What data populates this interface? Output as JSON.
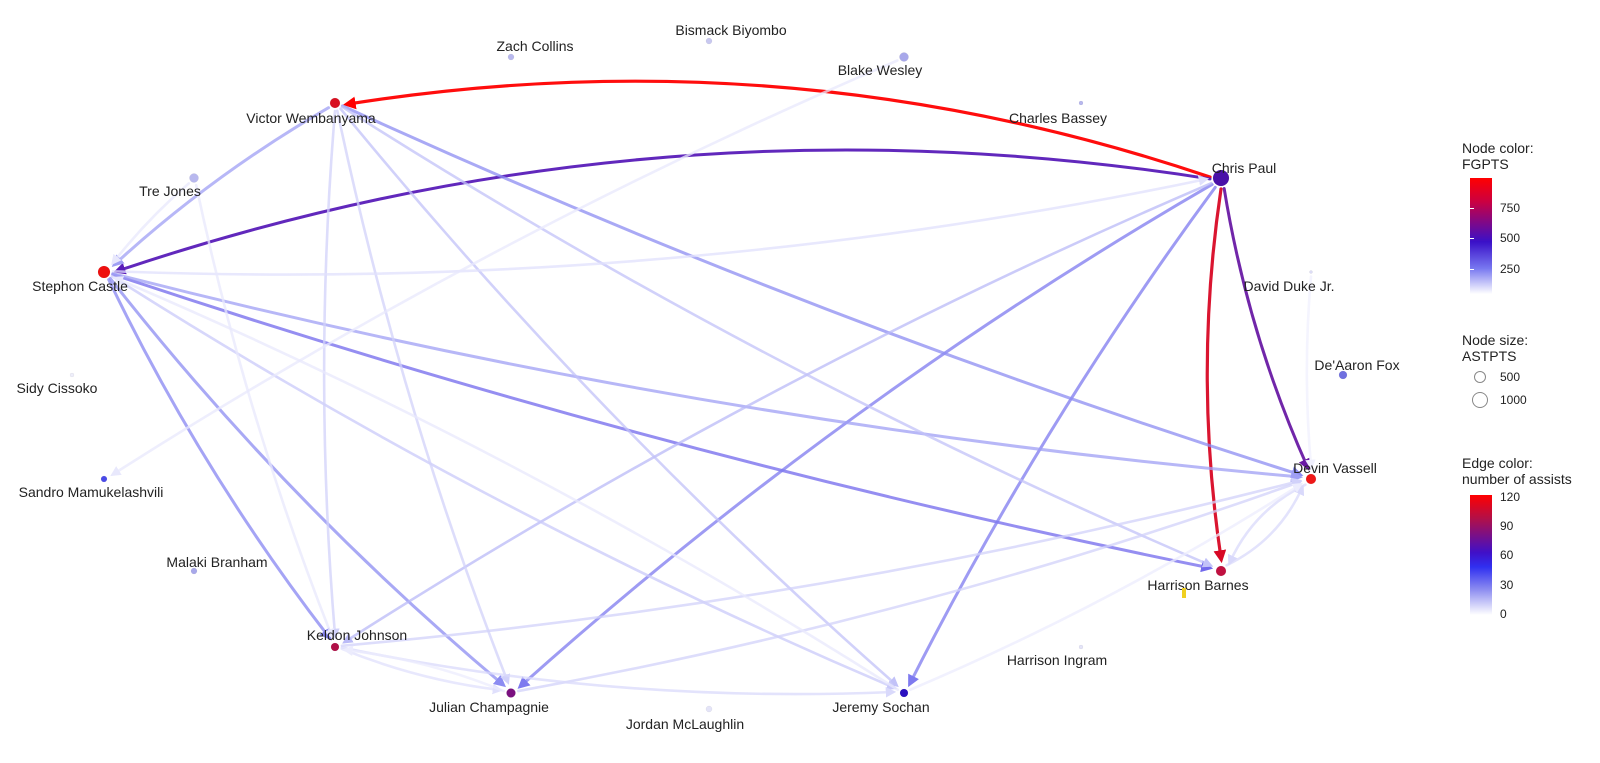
{
  "nodes": [
    {
      "id": "victor",
      "label": "Victor Wembanyama",
      "color": "#d81020"
    },
    {
      "id": "chris",
      "label": "Chris Paul",
      "color": "#4a10a8"
    },
    {
      "id": "stephon",
      "label": "Stephon Castle",
      "color": "#ee1010"
    },
    {
      "id": "devin",
      "label": "Devin Vassell",
      "color": "#ee1818"
    },
    {
      "id": "harrison_b",
      "label": "Harrison Barnes",
      "color": "#c01040"
    },
    {
      "id": "julian",
      "label": "Julian Champagnie",
      "color": "#7a1080"
    },
    {
      "id": "keldon",
      "label": "Keldon Johnson",
      "color": "#b01048"
    },
    {
      "id": "jeremy",
      "label": "Jeremy Sochan",
      "color": "#2a10c0"
    },
    {
      "id": "zach",
      "label": "Zach Collins",
      "color": "#b8b8ee"
    },
    {
      "id": "bismack",
      "label": "Bismack Biyombo",
      "color": "#c8c8f0"
    },
    {
      "id": "blake",
      "label": "Blake Wesley",
      "color": "#a8a8ea"
    },
    {
      "id": "charles",
      "label": "Charles Bassey",
      "color": "#b8b8ee"
    },
    {
      "id": "tre",
      "label": "Tre Jones",
      "color": "#b8b8ee"
    },
    {
      "id": "david",
      "label": "David Duke Jr.",
      "color": "#dcdcf6"
    },
    {
      "id": "deaaron",
      "label": "De'Aaron Fox",
      "color": "#7070e0"
    },
    {
      "id": "sidy",
      "label": "Sidy Cissoko",
      "color": "#eeeefa"
    },
    {
      "id": "sandro",
      "label": "Sandro Mamukelashvili",
      "color": "#4a4ae8"
    },
    {
      "id": "malaki",
      "label": "Malaki Branham",
      "color": "#a8a8ea"
    },
    {
      "id": "harrison_i",
      "label": "Harrison Ingram",
      "color": "#e4e4f8"
    },
    {
      "id": "jordan",
      "label": "Jordan McLaughlin",
      "color": "#e4e4f8"
    }
  ],
  "edges": [
    {
      "from": "chris",
      "to": "victor",
      "assists": 120
    },
    {
      "from": "chris",
      "to": "harrison_b",
      "assists": 105
    },
    {
      "from": "chris",
      "to": "devin",
      "assists": 72
    },
    {
      "from": "chris",
      "to": "stephon",
      "assists": 68
    },
    {
      "from": "stephon",
      "to": "harrison_b",
      "assists": 40
    },
    {
      "from": "chris",
      "to": "julian",
      "assists": 35
    },
    {
      "from": "chris",
      "to": "jeremy",
      "assists": 35
    },
    {
      "from": "victor",
      "to": "devin",
      "assists": 30
    },
    {
      "from": "stephon",
      "to": "keldon",
      "assists": 32
    },
    {
      "from": "stephon",
      "to": "julian",
      "assists": 30
    },
    {
      "from": "stephon",
      "to": "devin",
      "assists": 25
    },
    {
      "from": "victor",
      "to": "stephon",
      "assists": 25
    },
    {
      "from": "chris",
      "to": "keldon",
      "assists": 18
    },
    {
      "from": "victor",
      "to": "jeremy",
      "assists": 16
    },
    {
      "from": "victor",
      "to": "harrison_b",
      "assists": 16
    },
    {
      "from": "stephon",
      "to": "jeremy",
      "assists": 14
    },
    {
      "from": "keldon",
      "to": "devin",
      "assists": 12
    },
    {
      "from": "julian",
      "to": "devin",
      "assists": 12
    },
    {
      "from": "victor",
      "to": "keldon",
      "assists": 12
    },
    {
      "from": "victor",
      "to": "julian",
      "assists": 12
    },
    {
      "from": "keldon",
      "to": "jeremy",
      "assists": 10
    },
    {
      "from": "harrison_b",
      "to": "devin",
      "assists": 10
    },
    {
      "from": "devin",
      "to": "harrison_b",
      "assists": 10
    },
    {
      "from": "keldon",
      "to": "julian",
      "assists": 8
    },
    {
      "from": "stephon",
      "to": "chris",
      "assists": 8
    },
    {
      "from": "blake",
      "to": "sandro",
      "assists": 6
    },
    {
      "from": "tre",
      "to": "keldon",
      "assists": 6
    },
    {
      "from": "tre",
      "to": "stephon",
      "assists": 6
    },
    {
      "from": "jeremy",
      "to": "stephon",
      "assists": 6
    },
    {
      "from": "julian",
      "to": "keldon",
      "assists": 5
    },
    {
      "from": "david",
      "to": "devin",
      "assists": 4
    },
    {
      "from": "jeremy",
      "to": "devin",
      "assists": 5
    }
  ],
  "legend": {
    "node_color": {
      "title_line1": "Node color:",
      "title_line2": "FGPTS",
      "ticks": [
        "750",
        "500",
        "250"
      ]
    },
    "node_size": {
      "title_line1": "Node size:",
      "title_line2": "ASTPTS",
      "items": [
        "500",
        "1000"
      ]
    },
    "edge_color": {
      "title_line1": "Edge color:",
      "title_line2": "number of assists",
      "ticks": [
        "120",
        "90",
        "60",
        "30",
        "0"
      ]
    }
  }
}
